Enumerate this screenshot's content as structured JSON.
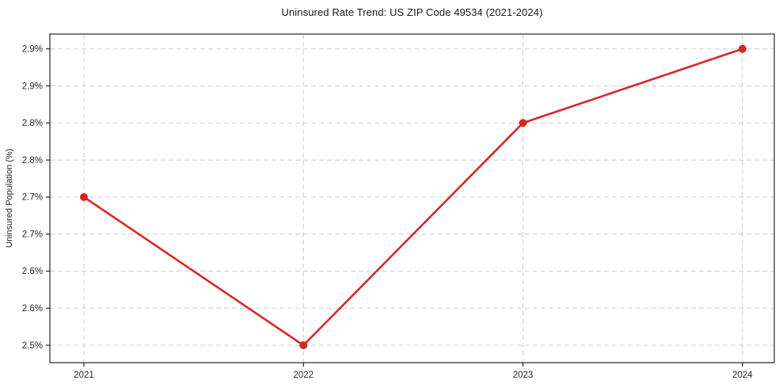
{
  "chart_data": {
    "type": "line",
    "title": "Uninsured Rate Trend: US ZIP Code 49534 (2021-2024)",
    "xlabel": "",
    "ylabel": "Uninsured Population (%)",
    "x": [
      2021,
      2022,
      2023,
      2024
    ],
    "x_tick_labels": [
      "2021",
      "2022",
      "2023",
      "2024"
    ],
    "values": [
      2.7,
      2.5,
      2.8,
      2.9
    ],
    "y_ticks": [
      {
        "value": 2.5,
        "label": "2.5%"
      },
      {
        "value": 2.55,
        "label": "2.6%"
      },
      {
        "value": 2.6,
        "label": "2.6%"
      },
      {
        "value": 2.65,
        "label": "2.7%"
      },
      {
        "value": 2.7,
        "label": "2.7%"
      },
      {
        "value": 2.75,
        "label": "2.8%"
      },
      {
        "value": 2.8,
        "label": "2.8%"
      },
      {
        "value": 2.85,
        "label": "2.9%"
      },
      {
        "value": 2.9,
        "label": "2.9%"
      }
    ],
    "xlim": [
      2020.845,
      2024.145
    ],
    "ylim": [
      2.4765,
      2.92
    ],
    "grid": true,
    "grid_style": "dashed",
    "legend_position": "none",
    "line_color": "#d62728",
    "marker": "circle",
    "grid_color": "#cccccc",
    "axis_color": "#262626",
    "text_color": "#262626",
    "background_color": "#ffffff"
  }
}
